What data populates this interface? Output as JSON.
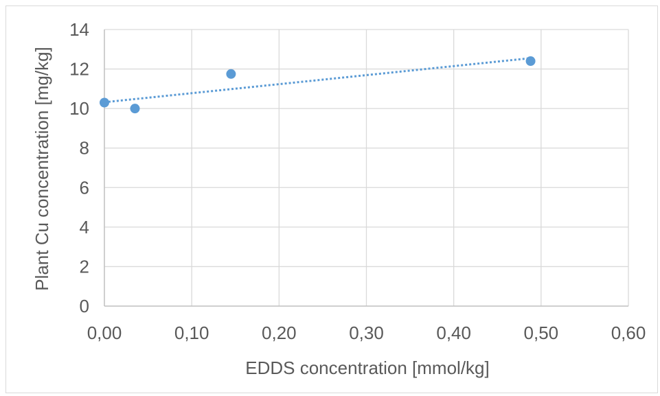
{
  "chart_data": {
    "type": "scatter",
    "title": "",
    "xlabel": "EDDS concentration [mmol/kg]",
    "ylabel": "Plant Cu concentration [mg/kg]",
    "xlim": [
      0,
      0.6
    ],
    "ylim": [
      0,
      14
    ],
    "x_ticks": [
      "0,00",
      "0,10",
      "0,20",
      "0,30",
      "0,40",
      "0,50",
      "0,60"
    ],
    "y_ticks": [
      "0",
      "2",
      "4",
      "6",
      "8",
      "10",
      "12",
      "14"
    ],
    "grid": true,
    "legend": "none",
    "series": [
      {
        "x": [
          0.0,
          0.035,
          0.145,
          0.488
        ],
        "y": [
          10.3,
          10.0,
          11.75,
          12.4
        ],
        "color": "#5b9bd5",
        "trendline": {
          "type": "linear",
          "style": "dotted",
          "x": [
            0.0,
            0.488
          ],
          "y": [
            10.32,
            12.55
          ]
        }
      }
    ]
  }
}
